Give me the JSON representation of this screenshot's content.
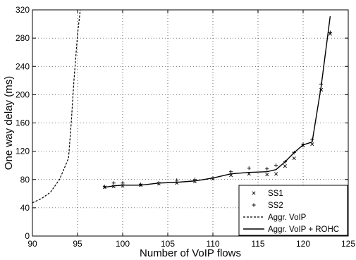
{
  "chart_data": {
    "type": "line",
    "xlabel": "Number of VoIP flows",
    "ylabel": "One way delay (ms)",
    "xlim": [
      90,
      125
    ],
    "ylim": [
      0,
      320
    ],
    "xticks": [
      90,
      95,
      100,
      105,
      110,
      115,
      120,
      125
    ],
    "yticks": [
      0,
      40,
      80,
      120,
      160,
      200,
      240,
      280,
      320
    ],
    "ytick_labels": [
      "0",
      "40",
      "80",
      "120",
      "160",
      "200",
      "240",
      "280",
      "320"
    ],
    "grid": true,
    "legend_position": "bottom-right",
    "series": [
      {
        "name": "SS1",
        "style": "marker-x",
        "points": [
          [
            98,
            69
          ],
          [
            99,
            70
          ],
          [
            100,
            71
          ],
          [
            102,
            72
          ],
          [
            104,
            74
          ],
          [
            106,
            75
          ],
          [
            108,
            77
          ],
          [
            110,
            81
          ],
          [
            112,
            86
          ],
          [
            114,
            88
          ],
          [
            116,
            87
          ],
          [
            117,
            88
          ],
          [
            118,
            99
          ],
          [
            119,
            110
          ],
          [
            120,
            128
          ],
          [
            121,
            130
          ],
          [
            122,
            207
          ],
          [
            123,
            286
          ]
        ]
      },
      {
        "name": "SS2",
        "style": "marker-plus",
        "points": [
          [
            98,
            70
          ],
          [
            99,
            75
          ],
          [
            100,
            75
          ],
          [
            102,
            73
          ],
          [
            104,
            75
          ],
          [
            106,
            79
          ],
          [
            108,
            80
          ],
          [
            110,
            82
          ],
          [
            112,
            91
          ],
          [
            114,
            96
          ],
          [
            116,
            95
          ],
          [
            117,
            100
          ],
          [
            118,
            105
          ],
          [
            119,
            118
          ],
          [
            120,
            130
          ],
          [
            121,
            136
          ],
          [
            122,
            215
          ],
          [
            123,
            288
          ]
        ]
      },
      {
        "name": "Aggr. VoIP",
        "style": "dashed",
        "points": [
          [
            90,
            47
          ],
          [
            91,
            53
          ],
          [
            92,
            62
          ],
          [
            93,
            80
          ],
          [
            94,
            110
          ],
          [
            94.3,
            160
          ],
          [
            94.6,
            220
          ],
          [
            95,
            285
          ],
          [
            95.3,
            320
          ]
        ]
      },
      {
        "name": "Aggr. VoIP + ROHC",
        "style": "solid",
        "points": [
          [
            98,
            69
          ],
          [
            99,
            71
          ],
          [
            100,
            72
          ],
          [
            102,
            72
          ],
          [
            104,
            75
          ],
          [
            106,
            76
          ],
          [
            108,
            78
          ],
          [
            110,
            82
          ],
          [
            112,
            88
          ],
          [
            114,
            90
          ],
          [
            116,
            91
          ],
          [
            117,
            94
          ],
          [
            118,
            105
          ],
          [
            119,
            118
          ],
          [
            120,
            129
          ],
          [
            121,
            133
          ],
          [
            122,
            212
          ],
          [
            123,
            311
          ]
        ]
      }
    ]
  }
}
